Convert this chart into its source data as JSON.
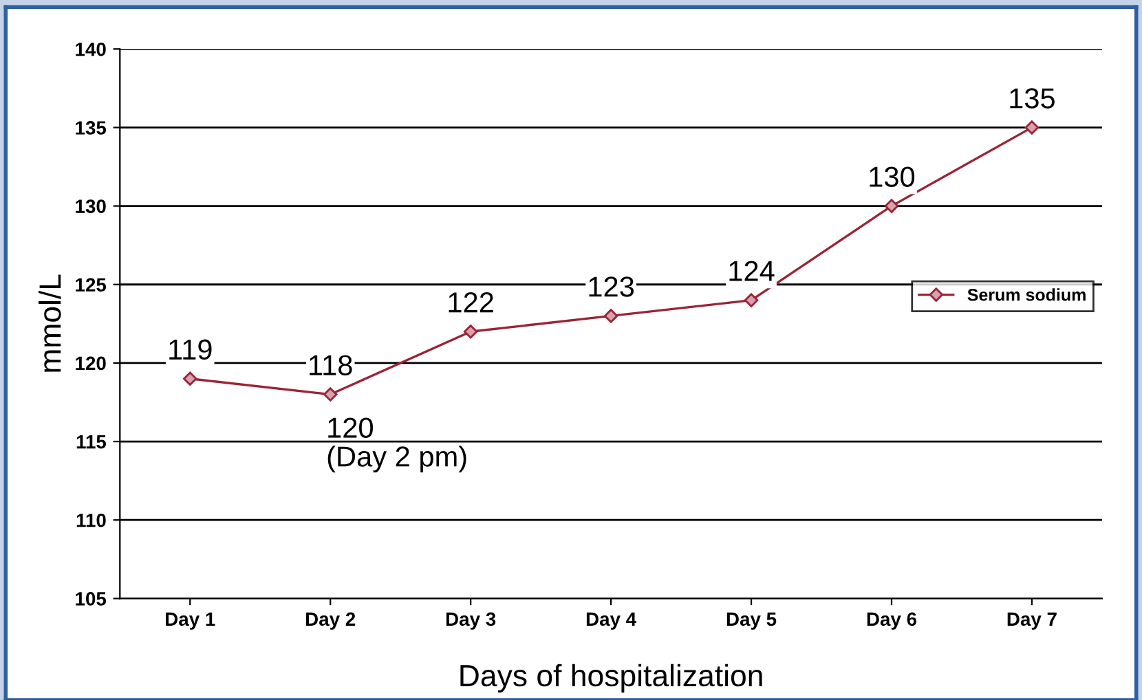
{
  "chart_data": {
    "type": "line",
    "xlabel": "Days of hospitalization",
    "ylabel": "mmol/L",
    "categories": [
      "Day 1",
      "Day 2",
      "Day 3",
      "Day 4",
      "Day 5",
      "Day 6",
      "Day 7"
    ],
    "series": [
      {
        "name": "Serum sodium",
        "color": "#9b2335",
        "values": [
          119,
          118,
          122,
          123,
          124,
          130,
          135
        ]
      }
    ],
    "ylim": [
      105,
      140
    ],
    "yticks": [
      105,
      110,
      115,
      120,
      125,
      130,
      135,
      140
    ],
    "grid": "y",
    "legend": "right",
    "marker": "diamond",
    "line_style": "solid",
    "data_labels": true,
    "annotations": [
      "120\n(Day 2 pm)"
    ]
  }
}
